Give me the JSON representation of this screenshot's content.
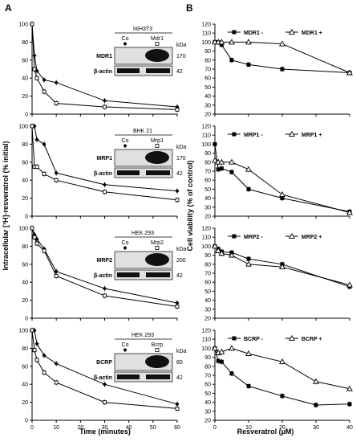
{
  "panel_letters": [
    "A",
    "B"
  ],
  "left": {
    "ylabel": "Intracellular [³H]-resveratrol (% initial)",
    "xlabel": "Time (minutes)",
    "x_ticks": [
      "0",
      "10",
      "20",
      "30",
      "40",
      "50",
      "60"
    ],
    "y_ticks": [
      "0",
      "20",
      "40",
      "60",
      "80",
      "100"
    ]
  },
  "right": {
    "ylabel": "Cell viability (% of control)",
    "xlabel": "Resveratrol (µM)",
    "x_ticks": [
      "0",
      "10",
      "20",
      "30",
      "40"
    ],
    "y_ticks": [
      "20",
      "30",
      "40",
      "50",
      "60",
      "70",
      "80",
      "90",
      "100",
      "110",
      "120"
    ]
  },
  "blots": [
    {
      "cell_line": "NIH3T3",
      "co": "Co",
      "transporter": "Mdr1",
      "row1": "MDR1",
      "row2": "β-actin",
      "kda_label": "kDa",
      "kda1": "170",
      "kda2": "42"
    },
    {
      "cell_line": "BHK 21",
      "co": "Co",
      "transporter": "Mrp1",
      "row1": "MRP1",
      "row2": "β-actin",
      "kda_label": "kDa",
      "kda1": "170",
      "kda2": "42"
    },
    {
      "cell_line": "HEK 293",
      "co": "Co",
      "transporter": "Mrp2",
      "row1": "MRP2",
      "row2": "β-actin",
      "kda_label": "kDa",
      "kda1": "200",
      "kda2": "42"
    },
    {
      "cell_line": "HEK 293",
      "co": "Co",
      "transporter": "Bcrp",
      "row1": "BCRP",
      "row2": "β-actin",
      "kda_label": "kDa",
      "kda1": "80",
      "kda2": "42"
    }
  ],
  "chart_data": [
    {
      "type": "line",
      "x": [
        0,
        1,
        2,
        5,
        10,
        30,
        60
      ],
      "xlim": [
        0,
        60
      ],
      "ylim": [
        0,
        100
      ],
      "series": [
        {
          "marker": "filled-diamond",
          "values": [
            100,
            65,
            48,
            38,
            35,
            15,
            8
          ]
        },
        {
          "marker": "open-square",
          "values": [
            100,
            50,
            40,
            25,
            12,
            8,
            5
          ]
        }
      ]
    },
    {
      "type": "line",
      "x": [
        0,
        1,
        2,
        5,
        10,
        30,
        60
      ],
      "xlim": [
        0,
        60
      ],
      "ylim": [
        0,
        100
      ],
      "series": [
        {
          "marker": "filled-diamond",
          "values": [
            100,
            100,
            85,
            80,
            48,
            35,
            28
          ]
        },
        {
          "marker": "open-square",
          "values": [
            100,
            55,
            55,
            47,
            40,
            27,
            18
          ]
        }
      ]
    },
    {
      "type": "line",
      "x": [
        0,
        1,
        2,
        5,
        10,
        30,
        60
      ],
      "xlim": [
        0,
        60
      ],
      "ylim": [
        0,
        100
      ],
      "series": [
        {
          "marker": "filled-diamond",
          "values": [
            100,
            93,
            88,
            77,
            52,
            33,
            17
          ]
        },
        {
          "marker": "open-square",
          "values": [
            100,
            90,
            83,
            75,
            47,
            25,
            13
          ]
        }
      ]
    },
    {
      "type": "line",
      "x": [
        0,
        1,
        2,
        5,
        10,
        30,
        60
      ],
      "xlim": [
        0,
        60
      ],
      "ylim": [
        0,
        100
      ],
      "series": [
        {
          "marker": "filled-diamond",
          "values": [
            100,
            100,
            85,
            72,
            63,
            40,
            18
          ]
        },
        {
          "marker": "open-square",
          "values": [
            100,
            78,
            67,
            53,
            42,
            20,
            13
          ]
        }
      ]
    },
    {
      "type": "line",
      "x": [
        0,
        1,
        2,
        5,
        10,
        20,
        40
      ],
      "xlim": [
        0,
        40
      ],
      "ylim": [
        20,
        120
      ],
      "series": [
        {
          "name": "MDR1 -",
          "marker": "filled-square",
          "values": [
            100,
            100,
            97,
            80,
            75,
            70,
            66
          ]
        },
        {
          "name": "MDR1 +",
          "marker": "open-triangle",
          "values": [
            100,
            100,
            100,
            100,
            100,
            98,
            66
          ]
        }
      ]
    },
    {
      "type": "line",
      "x": [
        0,
        1,
        2,
        5,
        10,
        20,
        40
      ],
      "xlim": [
        0,
        40
      ],
      "ylim": [
        20,
        120
      ],
      "series": [
        {
          "name": "MRP1 -",
          "marker": "filled-square",
          "values": [
            100,
            72,
            73,
            69,
            50,
            40,
            25
          ]
        },
        {
          "name": "MRP1 +",
          "marker": "open-triangle",
          "values": [
            82,
            80,
            80,
            80,
            72,
            44,
            24
          ]
        }
      ]
    },
    {
      "type": "line",
      "x": [
        0,
        1,
        2,
        5,
        10,
        20,
        40
      ],
      "xlim": [
        0,
        40
      ],
      "ylim": [
        20,
        120
      ],
      "series": [
        {
          "name": "MRP2 -",
          "marker": "filled-square",
          "values": [
            100,
            97,
            94,
            93,
            86,
            80,
            55
          ]
        },
        {
          "name": "MRP2 +",
          "marker": "open-triangle",
          "values": [
            100,
            95,
            92,
            90,
            80,
            77,
            57
          ]
        }
      ]
    },
    {
      "type": "line",
      "x": [
        0,
        1,
        2,
        5,
        10,
        20,
        30,
        40
      ],
      "xlim": [
        0,
        40
      ],
      "ylim": [
        20,
        120
      ],
      "series": [
        {
          "name": "BCRP -",
          "marker": "filled-square",
          "values": [
            100,
            86,
            85,
            72,
            58,
            47,
            37,
            38
          ]
        },
        {
          "name": "BCRP +",
          "marker": "open-triangle",
          "values": [
            100,
            95,
            96,
            100,
            94,
            85,
            63,
            55
          ]
        }
      ]
    }
  ]
}
